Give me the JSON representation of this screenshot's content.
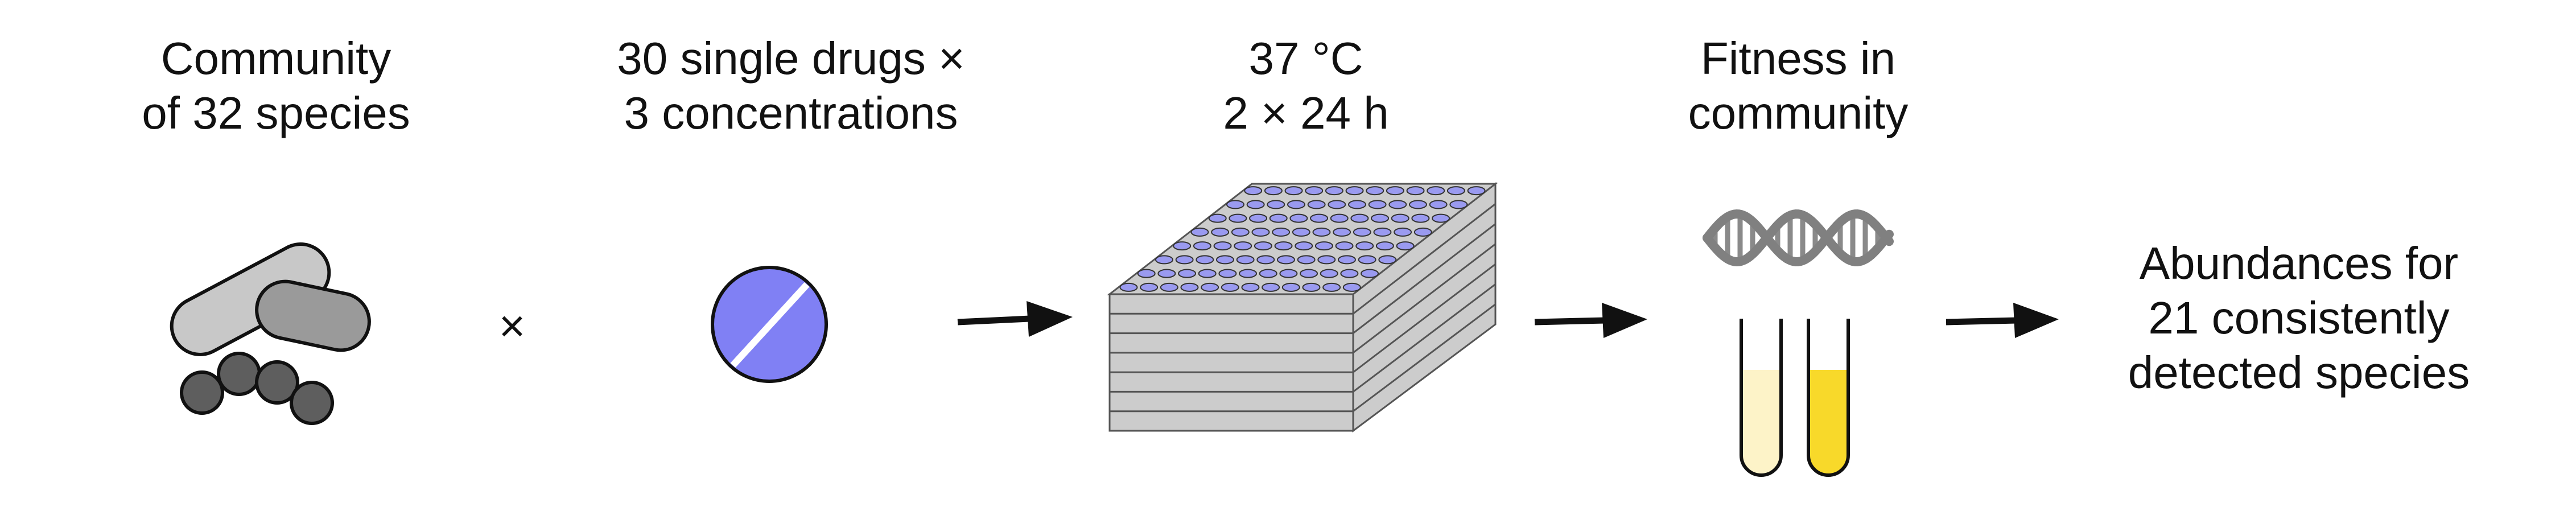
{
  "steps": [
    {
      "line1": "Community",
      "line2": "of 32 species"
    },
    {
      "line1": "30 single drugs ×",
      "line2": "3 concentrations"
    },
    {
      "line1": "37 °C",
      "line2": "2 × 24 h"
    },
    {
      "line1": "Fitness in",
      "line2": "community"
    }
  ],
  "times_symbol": "×",
  "result": {
    "line1": "Abundances for",
    "line2": "21 consistently",
    "line3": "detected species"
  },
  "icons": [
    "bacteria-icon",
    "pill-icon",
    "well-plate-stack-icon",
    "dna-icon",
    "test-tubes-icon"
  ],
  "colors": {
    "bacteria_light": "#c8c8c8",
    "bacteria_mid": "#9a9a9a",
    "cocci": "#5e5e5e",
    "pill": "#8080f4",
    "plate": "#cccccc",
    "well": "#9a9af0",
    "tube_light": "#fdf3c8",
    "tube_dark": "#f8d92a",
    "dna": "#808080"
  }
}
